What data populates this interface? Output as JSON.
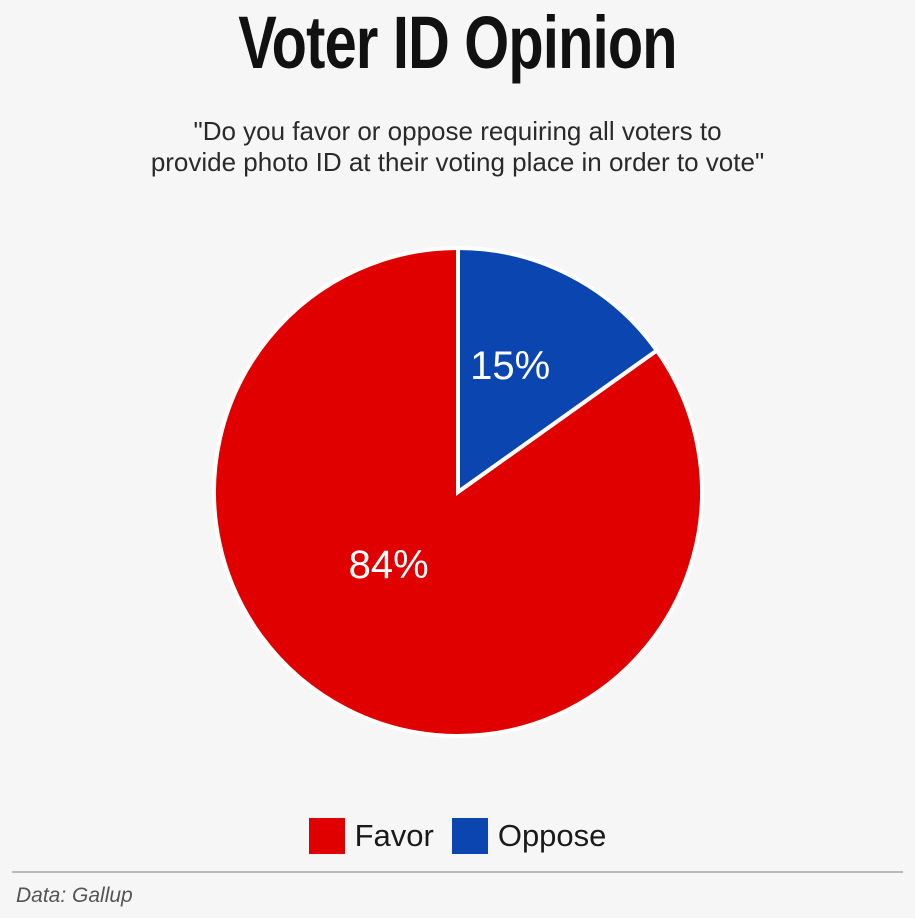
{
  "chart_data": {
    "type": "pie",
    "title": "Voter ID Opinion",
    "subtitle": "\"Do you favor or oppose requiring all voters to\nprovide photo ID at their voting place in order to vote\"",
    "slices": [
      {
        "label": "Favor",
        "value": 84,
        "display": "84%",
        "color": "#e00000"
      },
      {
        "label": "Oppose",
        "value": 15,
        "display": "15%",
        "color": "#0b45b0"
      }
    ],
    "legend_placement": "bottom",
    "source": "Data: Gallup"
  }
}
